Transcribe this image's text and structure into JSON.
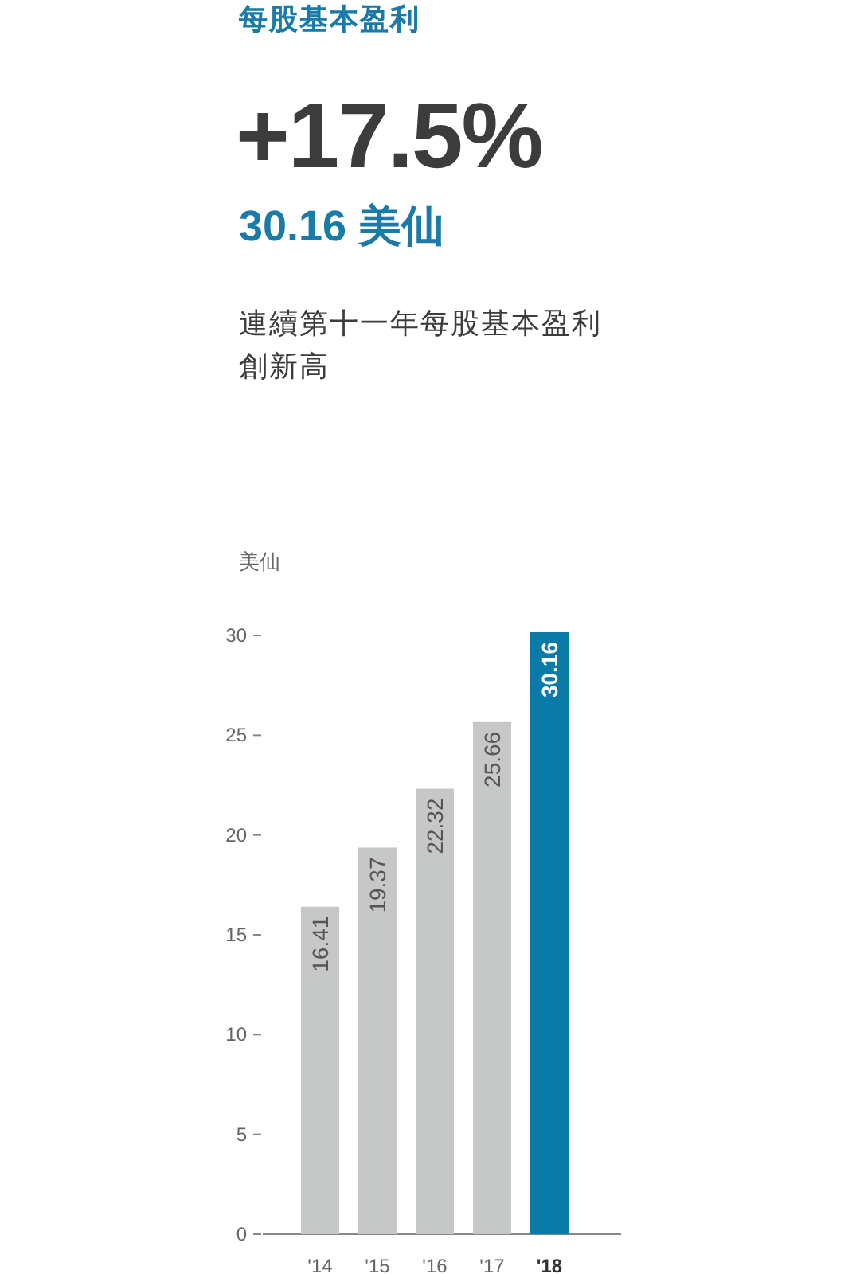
{
  "chart_data": {
    "type": "bar",
    "title": "每股基本盈利",
    "annotations": [
      "+17.5%",
      "30.16 美仙",
      "連續第十一年每股基本盈利創新高"
    ],
    "ylabel": "美仙",
    "categories": [
      "'14",
      "'15",
      "'16",
      "'17",
      "'18"
    ],
    "values": [
      16.41,
      19.37,
      22.32,
      25.66,
      30.16
    ],
    "colors": [
      "#c6c8c7",
      "#c6c8c7",
      "#c6c8c7",
      "#c6c8c7",
      "#0a7aa8"
    ],
    "ylim": [
      0,
      30.16
    ],
    "yticks": [
      0,
      5,
      10,
      15,
      20,
      25,
      30
    ],
    "data_labels": true
  }
}
